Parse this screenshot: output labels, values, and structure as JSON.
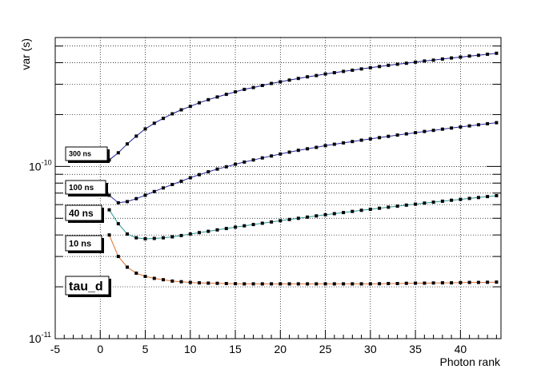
{
  "chart_data": {
    "type": "scatter",
    "title": "",
    "xlabel": "Photon rank",
    "ylabel": "var (s)",
    "xlim": [
      -5,
      44.5
    ],
    "ylim": [
      1e-11,
      5.6e-10
    ],
    "yscale": "log",
    "grid": true,
    "x_tick_labels": [
      "-5",
      "0",
      "5",
      "10",
      "15",
      "20",
      "25",
      "30",
      "35",
      "40"
    ],
    "y_tick_labels": [
      {
        "base": "10",
        "exp": "-10"
      },
      {
        "base": "10",
        "exp": "-11"
      }
    ],
    "series": [
      {
        "name": "300 ns",
        "line_color": "#1f1f9a",
        "x": [
          1,
          2,
          3,
          4,
          5,
          6,
          7,
          8,
          9,
          10,
          11,
          12,
          13,
          14,
          15,
          16,
          17,
          18,
          19,
          20,
          21,
          22,
          23,
          24,
          25,
          26,
          27,
          28,
          29,
          30,
          31,
          32,
          33,
          34,
          35,
          36,
          37,
          38,
          39,
          40,
          41,
          42,
          43,
          44
        ],
        "values": [
          1.09e-10,
          1.2e-10,
          1.35e-10,
          1.5e-10,
          1.65e-10,
          1.78e-10,
          1.9e-10,
          2.02e-10,
          2.13e-10,
          2.23e-10,
          2.34e-10,
          2.44e-10,
          2.53e-10,
          2.62e-10,
          2.71e-10,
          2.8e-10,
          2.87e-10,
          2.95e-10,
          3.03e-10,
          3.1e-10,
          3.17e-10,
          3.24e-10,
          3.31e-10,
          3.37e-10,
          3.44e-10,
          3.5e-10,
          3.56e-10,
          3.62e-10,
          3.68e-10,
          3.74e-10,
          3.8e-10,
          3.86e-10,
          3.92e-10,
          3.97e-10,
          4.03e-10,
          4.09e-10,
          4.14e-10,
          4.2e-10,
          4.26e-10,
          4.31e-10,
          4.37e-10,
          4.42e-10,
          4.48e-10,
          4.54e-10
        ]
      },
      {
        "name": "100 ns",
        "line_color": "#2a2aa8",
        "x": [
          1,
          2,
          3,
          4,
          5,
          6,
          7,
          8,
          9,
          10,
          11,
          12,
          13,
          14,
          15,
          16,
          17,
          18,
          19,
          20,
          21,
          22,
          23,
          24,
          25,
          26,
          27,
          28,
          29,
          30,
          31,
          32,
          33,
          34,
          35,
          36,
          37,
          38,
          39,
          40,
          41,
          42,
          43,
          44
        ],
        "values": [
          6.8e-11,
          6.15e-11,
          6.25e-11,
          6.5e-11,
          6.8e-11,
          7.15e-11,
          7.5e-11,
          7.85e-11,
          8.2e-11,
          8.6e-11,
          8.95e-11,
          9.3e-11,
          9.65e-11,
          9.95e-11,
          1.03e-10,
          1.06e-10,
          1.09e-10,
          1.12e-10,
          1.15e-10,
          1.18e-10,
          1.21e-10,
          1.24e-10,
          1.265e-10,
          1.29e-10,
          1.32e-10,
          1.345e-10,
          1.37e-10,
          1.395e-10,
          1.42e-10,
          1.445e-10,
          1.47e-10,
          1.495e-10,
          1.52e-10,
          1.545e-10,
          1.57e-10,
          1.595e-10,
          1.62e-10,
          1.645e-10,
          1.67e-10,
          1.695e-10,
          1.72e-10,
          1.745e-10,
          1.77e-10,
          1.795e-10
        ]
      },
      {
        "name": "40 ns",
        "line_color": "#2a9a9a",
        "x": [
          1,
          2,
          3,
          4,
          5,
          6,
          7,
          8,
          9,
          10,
          11,
          12,
          13,
          14,
          15,
          16,
          17,
          18,
          19,
          20,
          21,
          22,
          23,
          24,
          25,
          26,
          27,
          28,
          29,
          30,
          31,
          32,
          33,
          34,
          35,
          36,
          37,
          38,
          39,
          40,
          41,
          42,
          43,
          44
        ],
        "values": [
          5.6e-11,
          4.65e-11,
          4.05e-11,
          3.85e-11,
          3.8e-11,
          3.82e-11,
          3.85e-11,
          3.9e-11,
          3.97e-11,
          4.05e-11,
          4.13e-11,
          4.2e-11,
          4.28e-11,
          4.36e-11,
          4.44e-11,
          4.52e-11,
          4.6e-11,
          4.68e-11,
          4.76e-11,
          4.84e-11,
          4.92e-11,
          5e-11,
          5.08e-11,
          5.16e-11,
          5.24e-11,
          5.32e-11,
          5.4e-11,
          5.48e-11,
          5.56e-11,
          5.64e-11,
          5.72e-11,
          5.8e-11,
          5.88e-11,
          5.96e-11,
          6.04e-11,
          6.12e-11,
          6.2e-11,
          6.28e-11,
          6.36e-11,
          6.44e-11,
          6.52e-11,
          6.6e-11,
          6.68e-11,
          6.76e-11
        ]
      },
      {
        "name": "10 ns",
        "line_color": "#e07030",
        "x": [
          1,
          2,
          3,
          4,
          5,
          6,
          7,
          8,
          9,
          10,
          11,
          12,
          13,
          14,
          15,
          16,
          17,
          18,
          19,
          20,
          21,
          22,
          23,
          24,
          25,
          26,
          27,
          28,
          29,
          30,
          31,
          32,
          33,
          34,
          35,
          36,
          37,
          38,
          39,
          40,
          41,
          42,
          43,
          44
        ],
        "values": [
          4e-11,
          3e-11,
          2.6e-11,
          2.4e-11,
          2.3e-11,
          2.24e-11,
          2.2e-11,
          2.16e-11,
          2.14e-11,
          2.12e-11,
          2.11e-11,
          2.1e-11,
          2.095e-11,
          2.09e-11,
          2.085e-11,
          2.08e-11,
          2.08e-11,
          2.08e-11,
          2.08e-11,
          2.08e-11,
          2.08e-11,
          2.08e-11,
          2.08e-11,
          2.08e-11,
          2.08e-11,
          2.08e-11,
          2.08e-11,
          2.08e-11,
          2.08e-11,
          2.08e-11,
          2.085e-11,
          2.09e-11,
          2.09e-11,
          2.095e-11,
          2.1e-11,
          2.1e-11,
          2.105e-11,
          2.11e-11,
          2.11e-11,
          2.115e-11,
          2.12e-11,
          2.12e-11,
          2.125e-11,
          2.13e-11
        ]
      }
    ],
    "labels": [
      {
        "text": "300 ns"
      },
      {
        "text": "100 ns"
      },
      {
        "text": "40 ns"
      },
      {
        "text": "10 ns"
      },
      {
        "text": "tau_d"
      }
    ]
  }
}
